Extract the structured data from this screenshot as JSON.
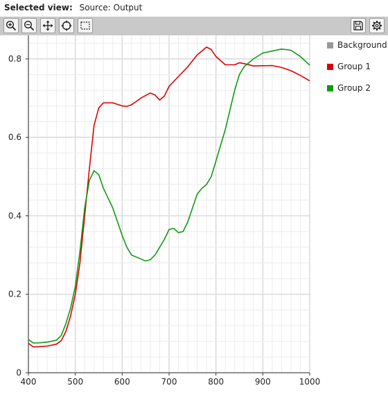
{
  "header": {
    "title_label": "Selected view:",
    "title_value": "Source: Output"
  },
  "toolbar": {
    "left_tools": [
      "zoom-in-icon",
      "zoom-out-icon",
      "pan-icon",
      "reset-view-icon",
      "select-rect-icon"
    ],
    "right_tools": [
      "save-icon",
      "settings-icon"
    ]
  },
  "legend": [
    {
      "label": "Background",
      "color": "#999999"
    },
    {
      "label": "Group 1",
      "color": "#dd0000"
    },
    {
      "label": "Group 2",
      "color": "#119911"
    }
  ],
  "chart_data": {
    "type": "line",
    "title": "",
    "xlabel": "",
    "ylabel": "",
    "xlim": [
      400,
      1000
    ],
    "ylim": [
      0,
      0.86
    ],
    "xticks": [
      400,
      500,
      600,
      700,
      800,
      900,
      1000
    ],
    "yticks": [
      0,
      0.2,
      0.4,
      0.6,
      0.8
    ],
    "grid": true,
    "legend_position": "right",
    "series": [
      {
        "name": "Group 1",
        "color": "#dd0000",
        "x": [
          400,
          410,
          420,
          440,
          460,
          470,
          480,
          490,
          500,
          510,
          520,
          530,
          540,
          550,
          560,
          580,
          600,
          610,
          620,
          640,
          660,
          670,
          680,
          690,
          700,
          720,
          740,
          760,
          780,
          790,
          800,
          820,
          840,
          850,
          860,
          880,
          920,
          940,
          960,
          980,
          1000
        ],
        "y": [
          0.075,
          0.066,
          0.066,
          0.068,
          0.073,
          0.082,
          0.105,
          0.145,
          0.2,
          0.28,
          0.4,
          0.52,
          0.63,
          0.675,
          0.688,
          0.688,
          0.68,
          0.679,
          0.683,
          0.7,
          0.713,
          0.708,
          0.695,
          0.705,
          0.73,
          0.755,
          0.78,
          0.81,
          0.83,
          0.824,
          0.806,
          0.785,
          0.785,
          0.79,
          0.788,
          0.782,
          0.783,
          0.778,
          0.77,
          0.758,
          0.744
        ]
      },
      {
        "name": "Group 2",
        "color": "#119911",
        "x": [
          400,
          410,
          420,
          440,
          460,
          470,
          480,
          490,
          500,
          510,
          520,
          530,
          540,
          550,
          560,
          580,
          600,
          610,
          620,
          640,
          650,
          660,
          670,
          680,
          690,
          700,
          710,
          720,
          730,
          740,
          750,
          760,
          770,
          780,
          790,
          800,
          820,
          840,
          850,
          860,
          880,
          900,
          920,
          940,
          960,
          980,
          1000
        ],
        "y": [
          0.085,
          0.076,
          0.076,
          0.078,
          0.083,
          0.095,
          0.125,
          0.165,
          0.22,
          0.31,
          0.42,
          0.49,
          0.515,
          0.505,
          0.47,
          0.42,
          0.35,
          0.32,
          0.3,
          0.29,
          0.285,
          0.288,
          0.3,
          0.32,
          0.34,
          0.365,
          0.368,
          0.357,
          0.36,
          0.385,
          0.42,
          0.455,
          0.47,
          0.48,
          0.5,
          0.54,
          0.62,
          0.72,
          0.76,
          0.78,
          0.8,
          0.815,
          0.82,
          0.825,
          0.822,
          0.806,
          0.784
        ]
      }
    ]
  }
}
